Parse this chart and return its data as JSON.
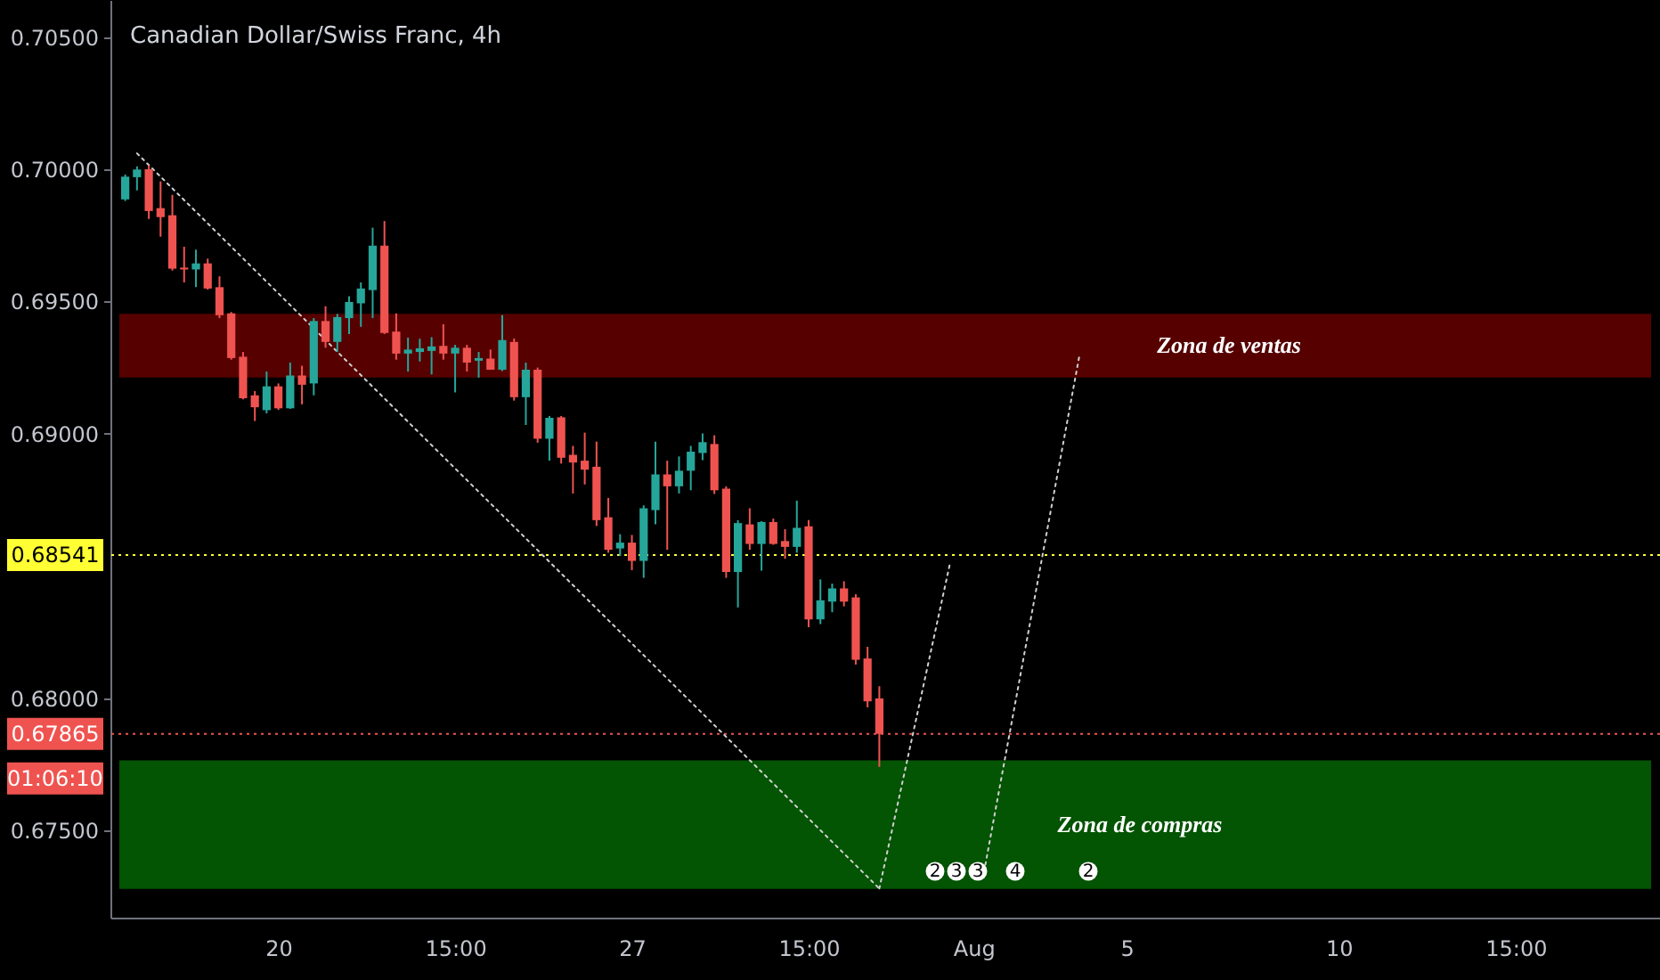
{
  "chart_data": {
    "type": "candlestick",
    "title": "Canadian Dollar/Swiss Franc, 4h",
    "categories": [
      null,
      null,
      null,
      null,
      null,
      null,
      null,
      null,
      null,
      null,
      null,
      null,
      null,
      "20",
      null,
      null,
      null,
      null,
      null,
      null,
      null,
      null,
      null,
      null,
      null,
      null,
      null,
      null,
      "15:00",
      null,
      null,
      null,
      null,
      null,
      null,
      null,
      null,
      null,
      null,
      null,
      null,
      null,
      null,
      "27",
      null,
      null,
      null,
      null,
      null,
      null,
      null,
      null,
      null,
      null,
      null,
      null,
      null,
      null,
      "15:00",
      null,
      null,
      null,
      null,
      null,
      null,
      null,
      null,
      null,
      null,
      null,
      null,
      null,
      "Aug",
      null,
      null,
      null,
      null,
      null,
      null,
      null,
      null,
      null,
      null,
      null,
      null,
      "5",
      null,
      null,
      null,
      null,
      null,
      null,
      null,
      null,
      null,
      null,
      null,
      null,
      null,
      null,
      null,
      null,
      null,
      "10",
      null,
      null,
      null,
      null,
      null,
      null,
      null,
      null,
      null,
      null,
      null,
      null,
      null,
      null,
      "15:00",
      null,
      null,
      null,
      null,
      null,
      null,
      null,
      null,
      null,
      null,
      null
    ],
    "ohlc": [
      [
        0.69886,
        0.6998,
        0.6988,
        0.69972
      ],
      [
        0.6997,
        0.70011,
        0.6992,
        0.69999
      ],
      [
        0.7,
        0.70015,
        0.69812,
        0.69842
      ],
      [
        0.69853,
        0.69954,
        0.69745,
        0.69819
      ],
      [
        0.69826,
        0.69903,
        0.69617,
        0.69624
      ],
      [
        0.69628,
        0.69707,
        0.69572,
        0.69621
      ],
      [
        0.69621,
        0.69696,
        0.69554,
        0.69644
      ],
      [
        0.69644,
        0.69662,
        0.69545,
        0.69549
      ],
      [
        0.69554,
        0.69595,
        0.69437,
        0.69448
      ],
      [
        0.69455,
        0.6946,
        0.6928,
        0.69286
      ],
      [
        0.69291,
        0.69309,
        0.6913,
        0.69134
      ],
      [
        0.69145,
        0.69161,
        0.69048,
        0.691
      ],
      [
        0.69089,
        0.69235,
        0.69077,
        0.69179
      ],
      [
        0.69179,
        0.6919,
        0.6909,
        0.69096
      ],
      [
        0.69096,
        0.69269,
        0.69094,
        0.6922
      ],
      [
        0.6922,
        0.69257,
        0.69111,
        0.69185
      ],
      [
        0.6919,
        0.69437,
        0.69145,
        0.69426
      ],
      [
        0.69426,
        0.69482,
        0.69325,
        0.69347
      ],
      [
        0.69347,
        0.69453,
        0.69309,
        0.69441
      ],
      [
        0.69437,
        0.6952,
        0.69377,
        0.69498
      ],
      [
        0.69493,
        0.69572,
        0.69404,
        0.69549
      ],
      [
        0.69543,
        0.69779,
        0.69437,
        0.69711
      ],
      [
        0.69711,
        0.69804,
        0.69377,
        0.69381
      ],
      [
        0.69386,
        0.69455,
        0.6928,
        0.69303
      ],
      [
        0.69303,
        0.69363,
        0.69235,
        0.69318
      ],
      [
        0.69309,
        0.69359,
        0.69273,
        0.69323
      ],
      [
        0.69313,
        0.69365,
        0.69224,
        0.6933
      ],
      [
        0.69332,
        0.69414,
        0.6928,
        0.69303
      ],
      [
        0.69303,
        0.69336,
        0.69156,
        0.69325
      ],
      [
        0.69325,
        0.69336,
        0.69235,
        0.69269
      ],
      [
        0.69276,
        0.69309,
        0.69212,
        0.69286
      ],
      [
        0.69284,
        0.69318,
        0.69242,
        0.69242
      ],
      [
        0.69242,
        0.69448,
        0.69237,
        0.69354
      ],
      [
        0.69347,
        0.6936,
        0.69125,
        0.69138
      ],
      [
        0.69138,
        0.69269,
        0.69033,
        0.69242
      ],
      [
        0.69242,
        0.6925,
        0.68966,
        0.68981
      ],
      [
        0.68981,
        0.69067,
        0.68898,
        0.6906
      ],
      [
        0.69062,
        0.69067,
        0.68887,
        0.68909
      ],
      [
        0.6892,
        0.68954,
        0.68774,
        0.68891
      ],
      [
        0.68898,
        0.69004,
        0.68808,
        0.68864
      ],
      [
        0.68875,
        0.6897,
        0.68651,
        0.68673
      ],
      [
        0.68684,
        0.68757,
        0.6855,
        0.68561
      ],
      [
        0.68566,
        0.6862,
        0.68538,
        0.68588
      ],
      [
        0.68588,
        0.68617,
        0.68484,
        0.68519
      ],
      [
        0.68519,
        0.68729,
        0.68455,
        0.68718
      ],
      [
        0.68711,
        0.6897,
        0.68657,
        0.68846
      ],
      [
        0.68846,
        0.68898,
        0.68561,
        0.68801
      ],
      [
        0.68801,
        0.68914,
        0.68774,
        0.6886
      ],
      [
        0.6886,
        0.68954,
        0.68786,
        0.68932
      ],
      [
        0.68927,
        0.69001,
        0.689,
        0.68968
      ],
      [
        0.68961,
        0.68994,
        0.68772,
        0.68786
      ],
      [
        0.68792,
        0.68801,
        0.68455,
        0.68477
      ],
      [
        0.68477,
        0.68673,
        0.68343,
        0.68662
      ],
      [
        0.68657,
        0.68718,
        0.68561,
        0.68583
      ],
      [
        0.68583,
        0.68669,
        0.68482,
        0.68666
      ],
      [
        0.68666,
        0.68679,
        0.6858,
        0.68583
      ],
      [
        0.68594,
        0.68639,
        0.68527,
        0.68572
      ],
      [
        0.68572,
        0.68747,
        0.6855,
        0.68644
      ],
      [
        0.6865,
        0.68673,
        0.68268,
        0.68298
      ],
      [
        0.68298,
        0.68449,
        0.6828,
        0.6837
      ],
      [
        0.68365,
        0.68433,
        0.68325,
        0.68415
      ],
      [
        0.68415,
        0.68442,
        0.68347,
        0.68365
      ],
      [
        0.68381,
        0.68393,
        0.68127,
        0.68145
      ],
      [
        0.6815,
        0.68194,
        0.67965,
        0.67988
      ],
      [
        0.67999,
        0.68045,
        0.6774,
        0.67865
      ],
      null,
      null,
      null,
      null,
      null,
      null,
      null,
      null,
      null,
      null,
      null,
      null,
      null,
      null,
      null,
      null,
      null,
      null,
      null,
      null,
      null,
      null,
      null,
      null,
      null,
      null,
      null,
      null,
      null,
      null,
      null,
      null,
      null,
      null,
      null,
      null,
      null,
      null,
      null,
      null,
      null,
      null,
      null,
      null,
      null,
      null,
      null,
      null,
      null,
      null,
      null,
      null,
      null,
      null,
      null,
      null,
      null,
      null,
      null,
      null,
      null,
      null,
      null,
      null,
      null
    ],
    "colors": [
      "#26a69a",
      "#26a69a",
      "#ef5350",
      "#ef5350",
      "#ef5350",
      "#ef5350",
      "#26a69a",
      "#ef5350",
      "#ef5350",
      "#ef5350",
      "#ef5350",
      "#ef5350",
      "#26a69a",
      "#ef5350",
      "#26a69a",
      "#ef5350",
      "#26a69a",
      "#ef5350",
      "#26a69a",
      "#26a69a",
      "#26a69a",
      "#26a69a",
      "#ef5350",
      "#ef5350",
      "#26a69a",
      "#26a69a",
      "#26a69a",
      "#ef5350",
      "#26a69a",
      "#ef5350",
      "#26a69a",
      "#ef5350",
      "#26a69a",
      "#ef5350",
      "#26a69a",
      "#ef5350",
      "#26a69a",
      "#ef5350",
      "#ef5350",
      "#ef5350",
      "#ef5350",
      "#ef5350",
      "#26a69a",
      "#ef5350",
      "#26a69a",
      "#26a69a",
      "#ef5350",
      "#26a69a",
      "#26a69a",
      "#26a69a",
      "#ef5350",
      "#ef5350",
      "#26a69a",
      "#ef5350",
      "#26a69a",
      "#ef5350",
      "#ef5350",
      "#26a69a",
      "#ef5350",
      "#26a69a",
      "#26a69a",
      "#ef5350",
      "#ef5350",
      "#ef5350",
      "#ef5350",
      null,
      null,
      null,
      null,
      null,
      null,
      null,
      null,
      null,
      null,
      null,
      null,
      null,
      null,
      null,
      null,
      null,
      null,
      null,
      null,
      null,
      null,
      null,
      null,
      null,
      null,
      null,
      null,
      null,
      null,
      null,
      null,
      null,
      null,
      null,
      null,
      null,
      null,
      null,
      null,
      null,
      null,
      null,
      null,
      null,
      null,
      null,
      null,
      null,
      null,
      null,
      null,
      null,
      null,
      null,
      null,
      null,
      null,
      null,
      null,
      null,
      null,
      null,
      null,
      null
    ],
    "ylim": [
      0.6717,
      0.7064
    ],
    "yticks": [
      {
        "value": 0.705,
        "label": "0.70500"
      },
      {
        "value": 0.7,
        "label": "0.70000"
      },
      {
        "value": 0.695,
        "label": "0.69500"
      },
      {
        "value": 0.69,
        "label": "0.69000"
      },
      {
        "value": 0.68,
        "label": "0.68000"
      },
      {
        "value": 0.675,
        "label": "0.67500"
      }
    ],
    "series": [
      {
        "type": "line",
        "color": "#d0d0d0",
        "line_style": "dotted",
        "values": [
          null,
          0.7006,
          null,
          null,
          null,
          null,
          null,
          null,
          null,
          null,
          null,
          null,
          null,
          null,
          null,
          null,
          null,
          null,
          null,
          null,
          null,
          null,
          null,
          null,
          null,
          null,
          null,
          null,
          null,
          null,
          null,
          null,
          null,
          null,
          null,
          null,
          null,
          null,
          null,
          null,
          null,
          null,
          null,
          null,
          null,
          null,
          null,
          null,
          null,
          null,
          null,
          null,
          null,
          null,
          null,
          null,
          null,
          null,
          null,
          null,
          null,
          null,
          null,
          null,
          0.6728,
          null,
          null,
          null,
          null,
          null,
          null,
          null,
          null,
          null,
          null,
          null,
          null,
          null,
          null,
          null,
          null,
          null,
          null,
          null,
          null,
          null,
          null,
          null,
          null,
          null,
          null,
          null,
          null,
          null,
          null,
          null,
          null,
          null,
          null,
          null,
          null,
          null,
          null,
          null,
          null,
          null,
          null,
          null,
          null,
          null,
          null,
          null,
          null,
          null,
          null,
          null,
          null,
          null,
          null,
          null,
          null,
          null,
          null,
          null,
          null,
          null,
          null,
          null,
          null,
          null
        ]
      },
      {
        "type": "line",
        "color": "#d0d0d0",
        "line_style": "dotted",
        "values": [
          null,
          null,
          null,
          null,
          null,
          null,
          null,
          null,
          null,
          null,
          null,
          null,
          null,
          null,
          null,
          null,
          null,
          null,
          null,
          null,
          null,
          null,
          null,
          null,
          null,
          null,
          null,
          null,
          null,
          null,
          null,
          null,
          null,
          null,
          null,
          null,
          null,
          null,
          null,
          null,
          null,
          null,
          null,
          null,
          null,
          null,
          null,
          null,
          null,
          null,
          null,
          null,
          null,
          null,
          null,
          null,
          null,
          null,
          null,
          null,
          null,
          null,
          null,
          null,
          0.6728,
          null,
          null,
          null,
          null,
          null,
          0.6851,
          null,
          null,
          null,
          null,
          null,
          null,
          null,
          null,
          null,
          null,
          null,
          null,
          null,
          null,
          null,
          null,
          null,
          null,
          null,
          null,
          null,
          null,
          null,
          null,
          null,
          null,
          null,
          null,
          null,
          null,
          null,
          null,
          null,
          null,
          null,
          null,
          null,
          null,
          null,
          null,
          null,
          null,
          null,
          null,
          null,
          null,
          null,
          null,
          null,
          null,
          null,
          null,
          null,
          null,
          null,
          null,
          null,
          null,
          null
        ]
      },
      {
        "type": "line",
        "color": "#d0d0d0",
        "line_style": "dotted",
        "values": [
          null,
          null,
          null,
          null,
          null,
          null,
          null,
          null,
          null,
          null,
          null,
          null,
          null,
          null,
          null,
          null,
          null,
          null,
          null,
          null,
          null,
          null,
          null,
          null,
          null,
          null,
          null,
          null,
          null,
          null,
          null,
          null,
          null,
          null,
          null,
          null,
          null,
          null,
          null,
          null,
          null,
          null,
          null,
          null,
          null,
          null,
          null,
          null,
          null,
          null,
          null,
          null,
          null,
          null,
          null,
          null,
          null,
          null,
          null,
          null,
          null,
          null,
          null,
          null,
          null,
          null,
          null,
          null,
          null,
          null,
          null,
          null,
          null,
          0.6737,
          null,
          null,
          null,
          null,
          null,
          null,
          null,
          0.693,
          null,
          null,
          null,
          null,
          null,
          null,
          null,
          null,
          null,
          null,
          null,
          null,
          null,
          null,
          null,
          null,
          null,
          null,
          null,
          null,
          null,
          null,
          null,
          null,
          null,
          null,
          null,
          null,
          null,
          null,
          null,
          null,
          null,
          null,
          null,
          null,
          null,
          null,
          null,
          null,
          null,
          null,
          null,
          null,
          null,
          null,
          null,
          null
        ]
      }
    ],
    "ref_lines": [
      {
        "axis": "y",
        "value": 0.68541,
        "label": "0.68541",
        "color": "#ffff33",
        "line_style": "dotted"
      },
      {
        "axis": "y",
        "value": 0.67865,
        "label": "0.67865",
        "color": "#ef5350",
        "line_style": "dotted"
      }
    ],
    "bands": [
      {
        "axis": "y",
        "from": 0.69212,
        "to": 0.69453,
        "label": "Zona de ventas",
        "color": "#560000"
      },
      {
        "axis": "y",
        "from": 0.67279,
        "to": 0.67765,
        "label": "Zona de compras",
        "color": "#035403"
      }
    ],
    "annotations": [
      "01:06:10",
      "2",
      "3",
      "3",
      "4",
      "2"
    ],
    "grid": false
  }
}
